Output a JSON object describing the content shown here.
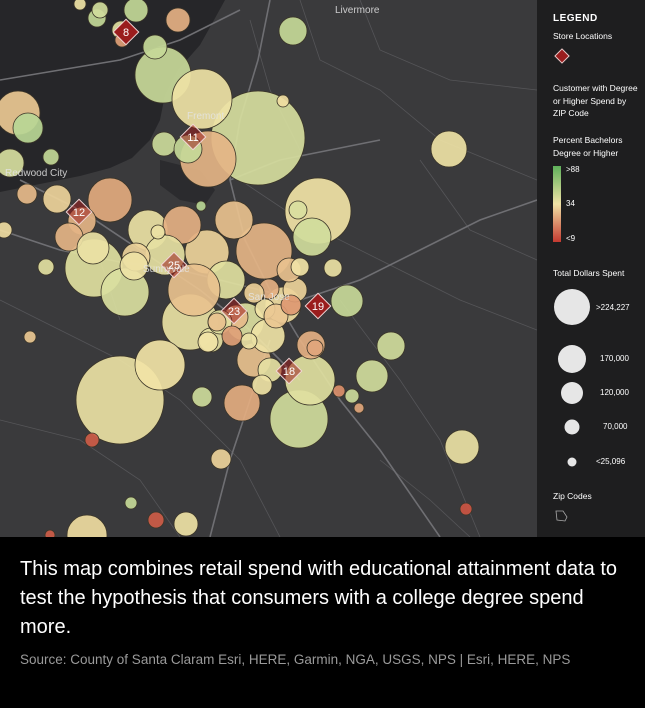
{
  "map": {
    "place_labels": [
      {
        "name": "livermore",
        "text": "Livermore"
      },
      {
        "name": "fremont",
        "text": "Fremont"
      },
      {
        "name": "redwood-city",
        "text": "Redwood City"
      },
      {
        "name": "sunnyvale",
        "text": "Sunnyvale"
      },
      {
        "name": "san-jose",
        "text": "San Jose"
      }
    ],
    "store_markers": [
      "8",
      "11",
      "12",
      "25",
      "23",
      "19",
      "18"
    ],
    "colors": {
      "high": "#a7d28f",
      "mid": "#f1e3a6",
      "low": "#c43a30",
      "store_marker": "#9a1d1d",
      "land": "#3a3a3c",
      "water": "#262629"
    }
  },
  "legend": {
    "title": "LEGEND",
    "store_locations_label": "Store Locations",
    "customer_label": "Customer with Degree or Higher Spend by ZIP Code",
    "percent_label": "Percent Bachelors Degree or Higher",
    "percent_scale": {
      "high": ">88",
      "mid": "34",
      "low": "<9"
    },
    "dollars_label": "Total Dollars Spent",
    "dollar_sizes": [
      ">224,227",
      "170,000",
      "120,000",
      "70,000",
      "<25,096"
    ],
    "zip_label": "Zip Codes"
  },
  "caption": {
    "text": "This map combines retail spend with educational attainment data to test the hypothesis that consumers with a college degree spend more.",
    "source": "Source: County of Santa Claram Esri, HERE, Garmin, NGA, USGS, NPS | Esri, HERE, NPS"
  }
}
